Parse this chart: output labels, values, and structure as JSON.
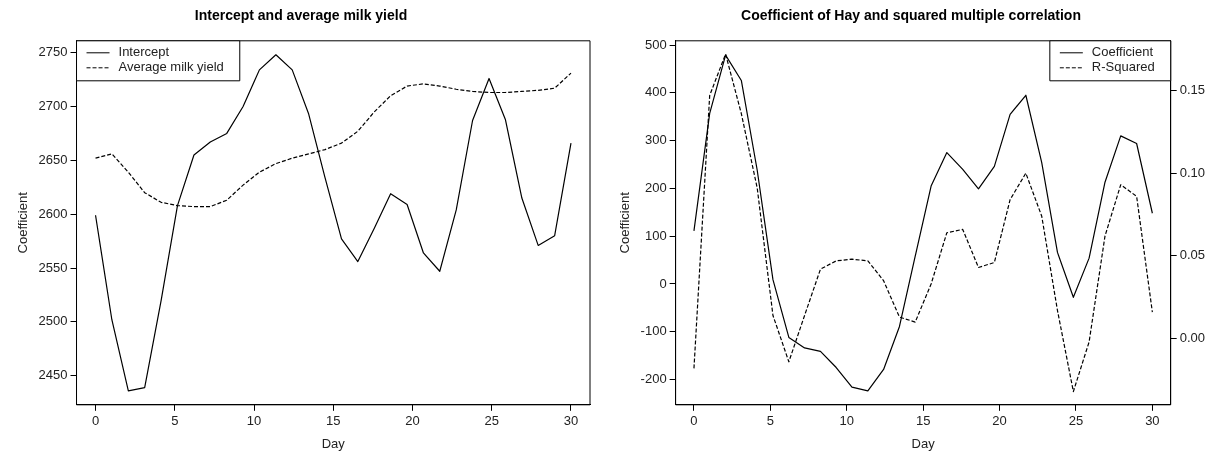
{
  "chart_data": [
    {
      "type": "line",
      "title": "Intercept and average milk yield",
      "xlabel": "Day",
      "ylabel": "Coefficient",
      "x": [
        0,
        1.03,
        2.07,
        3.1,
        4.14,
        5.17,
        6.21,
        7.24,
        8.28,
        9.31,
        10.34,
        11.38,
        12.41,
        13.45,
        14.48,
        15.52,
        16.55,
        17.59,
        18.62,
        19.66,
        20.69,
        21.72,
        22.76,
        23.79,
        24.83,
        25.86,
        26.9,
        27.93,
        28.97,
        30
      ],
      "series": [
        {
          "name": "Intercept",
          "color": "#000000",
          "line_style": "solid",
          "values": [
            2599,
            2502,
            2436,
            2439,
            2520,
            2608,
            2655,
            2667,
            2675,
            2700,
            2734,
            2748,
            2734,
            2693,
            2634,
            2577,
            2556,
            2587,
            2619,
            2609,
            2564,
            2547,
            2604,
            2687,
            2726,
            2688,
            2615,
            2571,
            2580,
            2666
          ]
        },
        {
          "name": "Average milk yield",
          "color": "#000000",
          "line_style": "dashed",
          "values": [
            2652,
            2656,
            2639,
            2620,
            2611,
            2608,
            2607,
            2607,
            2613,
            2627,
            2639,
            2647,
            2652,
            2656,
            2660,
            2666,
            2677,
            2695,
            2710,
            2719,
            2721,
            2719,
            2716,
            2714,
            2713,
            2713,
            2714,
            2715,
            2717,
            2731
          ]
        }
      ],
      "xlim": [
        -1.2,
        31.2
      ],
      "xticks": [
        0,
        5,
        10,
        15,
        20,
        25,
        30
      ],
      "ylim": [
        2423,
        2761
      ],
      "yticks": [
        2450,
        2500,
        2550,
        2600,
        2650,
        2700,
        2750
      ],
      "grid": false,
      "legend": "top left",
      "marker": "none"
    },
    {
      "type": "line",
      "title": "Coefficient of Hay and squared multiple correlation",
      "xlabel": "Day",
      "ylabel": "Coefficient",
      "x": [
        0,
        1.03,
        2.07,
        3.1,
        4.14,
        5.17,
        6.21,
        7.24,
        8.28,
        9.31,
        10.34,
        11.38,
        12.41,
        13.45,
        14.48,
        15.52,
        16.55,
        17.59,
        18.62,
        19.66,
        20.69,
        21.72,
        22.76,
        23.79,
        24.83,
        25.86,
        26.9,
        27.93,
        28.97,
        30
      ],
      "series": [
        {
          "name": "Coefficient",
          "color": "#000000",
          "line_style": "solid",
          "values": [
            111,
            357,
            479,
            426,
            238,
            9,
            -112,
            -134,
            -141,
            -175,
            -216,
            -224,
            -179,
            -89,
            58,
            205,
            275,
            240,
            199,
            246,
            355,
            395,
            254,
            66,
            -28,
            54,
            213,
            310,
            294,
            148
          ]
        },
        {
          "name": "R-Squared",
          "color": "#000000",
          "line_style": "dashed",
          "axis": "y2",
          "values": [
            -0.018,
            0.147,
            0.172,
            0.136,
            0.091,
            0.014,
            -0.014,
            0.014,
            0.042,
            0.047,
            0.048,
            0.047,
            0.035,
            0.013,
            0.01,
            0.033,
            0.064,
            0.066,
            0.043,
            0.046,
            0.084,
            0.1,
            0.074,
            0.017,
            -0.032,
            -0.002,
            0.062,
            0.093,
            0.086,
            0.016
          ]
        }
      ],
      "xlim": [
        -1.2,
        31.2
      ],
      "xticks": [
        0,
        5,
        10,
        15,
        20,
        25,
        30
      ],
      "ylim": [
        -253,
        509
      ],
      "yticks": [
        -200,
        -100,
        0,
        100,
        200,
        300,
        400,
        500
      ],
      "y2lim": [
        -0.04,
        0.18
      ],
      "y2ticks": [
        {
          "value": 0,
          "label": "0.00"
        },
        {
          "value": 0.05,
          "label": "0.05"
        },
        {
          "value": 0.1,
          "label": "0.10"
        },
        {
          "value": 0.15,
          "label": "0.15"
        }
      ],
      "grid": false,
      "legend": "top right",
      "marker": "none"
    }
  ]
}
